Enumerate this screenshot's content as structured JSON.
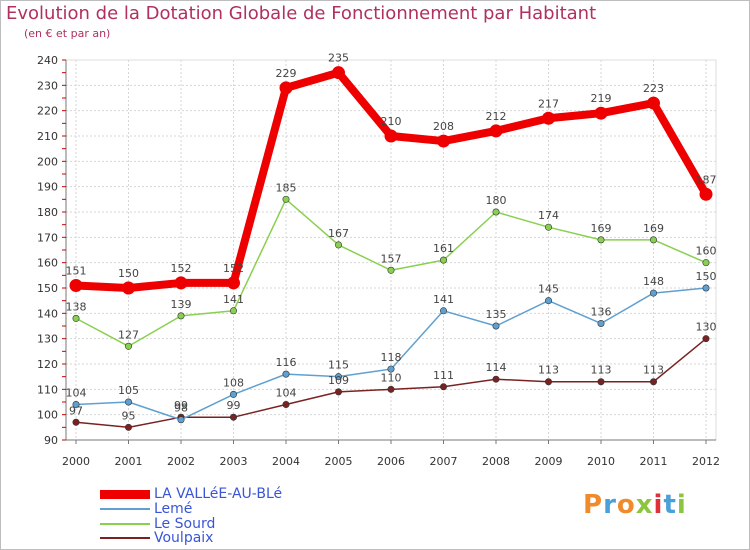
{
  "title": "Evolution de la Dotation Globale de Fonctionnement par Habitant",
  "subtitle": "(en € et par an)",
  "logo": {
    "text": "Proxiti",
    "colors": [
      "#f08a2b",
      "#4aa0d8",
      "#f08a2b",
      "#8cc63f",
      "#e0303a",
      "#4aa0d8",
      "#8cc63f"
    ]
  },
  "chart_data": {
    "type": "line",
    "x": [
      "2000",
      "2001",
      "2002",
      "2003",
      "2004",
      "2005",
      "2006",
      "2007",
      "2008",
      "2009",
      "2010",
      "2011",
      "2012"
    ],
    "yticks": [
      "90",
      "100",
      "110",
      "120",
      "130",
      "140",
      "150",
      "160",
      "170",
      "180",
      "190",
      "200",
      "210",
      "220",
      "230",
      "240"
    ],
    "ylim": [
      90,
      240
    ],
    "grid": true,
    "series": [
      {
        "name": "LA VALLéE-AU-BLé",
        "color": "#ee0000",
        "thick": true,
        "values": [
          151,
          150,
          152,
          152,
          229,
          235,
          210,
          208,
          212,
          217,
          219,
          223,
          187
        ],
        "labels": [
          "151",
          "150",
          "152",
          "152",
          "229",
          "235",
          "210",
          "208",
          "212",
          "217",
          "219",
          "223",
          "187"
        ]
      },
      {
        "name": "Lemé",
        "color": "#5fa0d0",
        "thick": false,
        "values": [
          104,
          105,
          98,
          108,
          116,
          115,
          118,
          141,
          135,
          145,
          136,
          148,
          150
        ],
        "labels": [
          "104",
          "105",
          "98",
          "108",
          "116",
          "115",
          "118",
          "141",
          "135",
          "145",
          "136",
          "148",
          "150"
        ]
      },
      {
        "name": "Le Sourd",
        "color": "#88d050",
        "thick": false,
        "values": [
          138,
          127,
          139,
          141,
          185,
          167,
          157,
          161,
          180,
          174,
          169,
          169,
          160
        ],
        "labels": [
          "138",
          "127",
          "139",
          "141",
          "185",
          "167",
          "157",
          "161",
          "180",
          "174",
          "169",
          "169",
          "160"
        ]
      },
      {
        "name": "Voulpaix",
        "color": "#7a2222",
        "thick": false,
        "values": [
          97,
          95,
          99,
          99,
          104,
          109,
          110,
          111,
          114,
          113,
          113,
          113,
          130
        ],
        "labels": [
          "97",
          "95",
          "99",
          "99",
          "104",
          "109",
          "110",
          "111",
          "114",
          "113",
          "113",
          "113",
          "130"
        ]
      }
    ]
  }
}
